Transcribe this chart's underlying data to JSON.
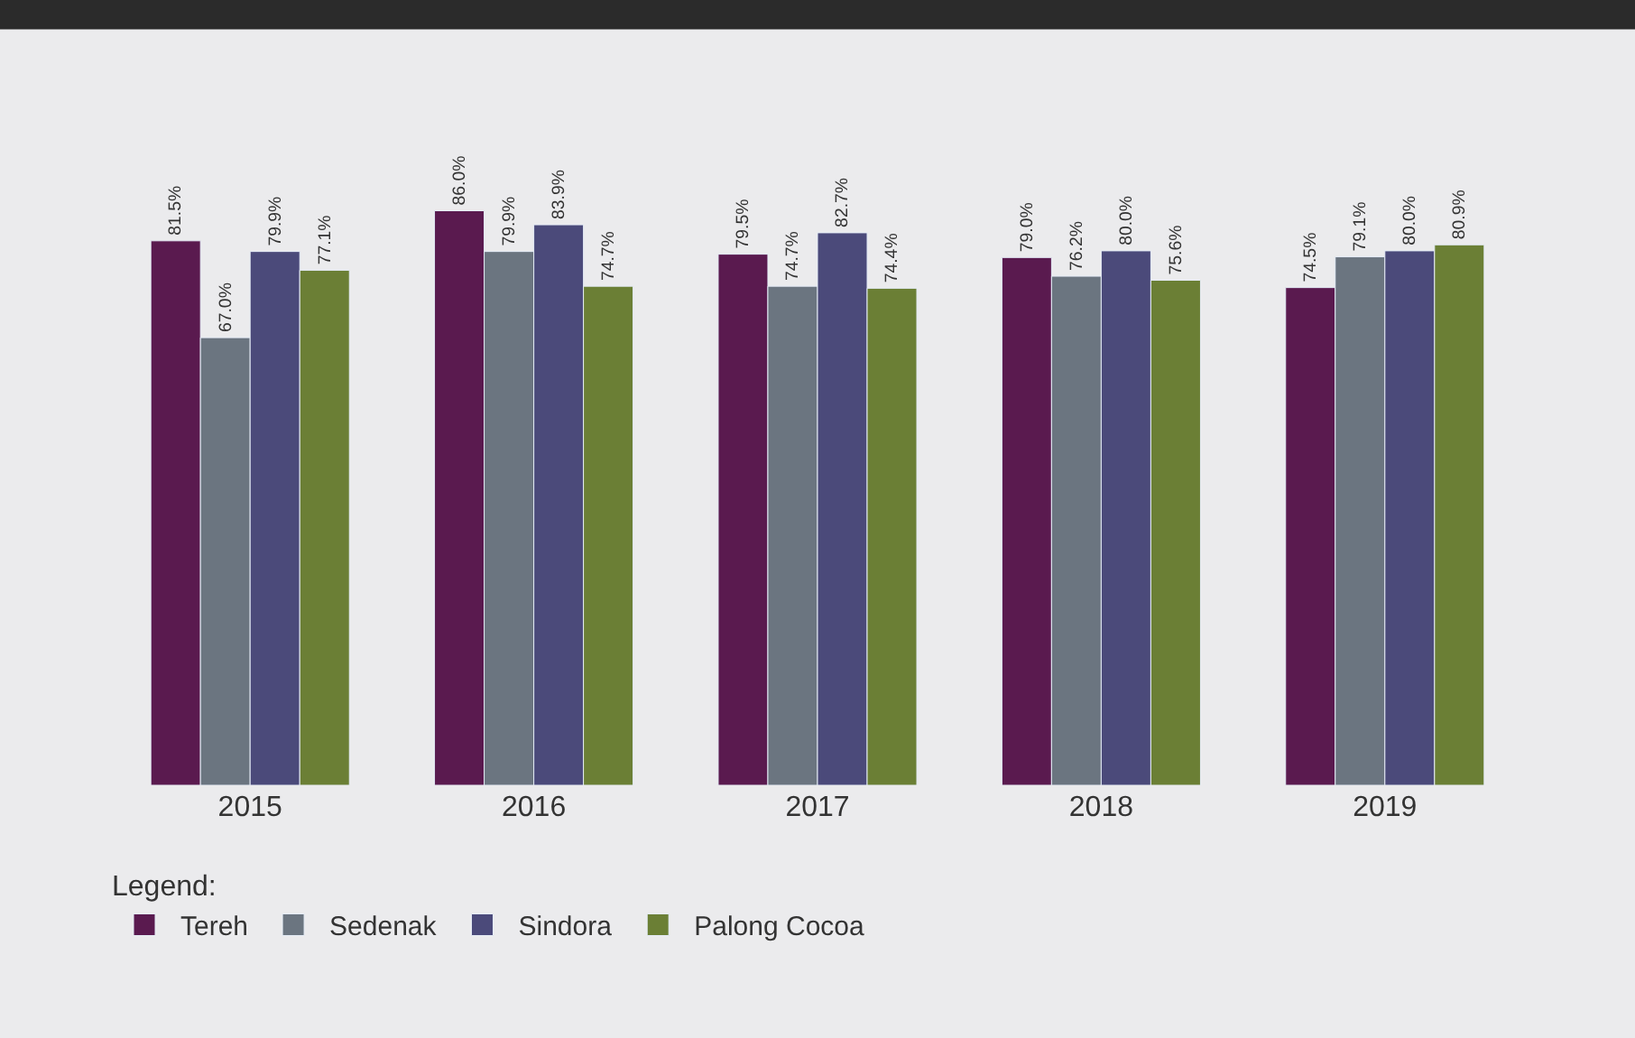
{
  "chart_data": {
    "type": "bar",
    "categories": [
      "2015",
      "2016",
      "2017",
      "2018",
      "2019"
    ],
    "series": [
      {
        "name": "Tereh",
        "color": "#5a1a4f",
        "values": [
          81.5,
          86.0,
          79.5,
          79.0,
          74.5
        ],
        "value_labels": [
          "81.5%",
          "86.0%",
          "79.5%",
          "79.0%",
          "74.5%"
        ]
      },
      {
        "name": "Sedenak",
        "color": "#6b7580",
        "values": [
          67.0,
          79.9,
          74.7,
          76.2,
          79.1
        ],
        "value_labels": [
          "67.0%",
          "79.9%",
          "74.7%",
          "76.2%",
          "79.1%"
        ]
      },
      {
        "name": "Sindora",
        "color": "#4b4a7a",
        "values": [
          79.9,
          83.9,
          82.7,
          80.0,
          80.0
        ],
        "value_labels": [
          "79.9%",
          "83.9%",
          "82.7%",
          "80.0%",
          "80.0%"
        ]
      },
      {
        "name": "Palong Cocoa",
        "color": "#6b7f35",
        "values": [
          77.1,
          74.7,
          74.4,
          75.6,
          80.9
        ],
        "value_labels": [
          "77.1%",
          "74.7%",
          "74.4%",
          "75.6%",
          "80.9%"
        ]
      }
    ],
    "legend_title": "Legend:",
    "legend": "bottom left",
    "grid": false,
    "tick_labels": "x"
  }
}
